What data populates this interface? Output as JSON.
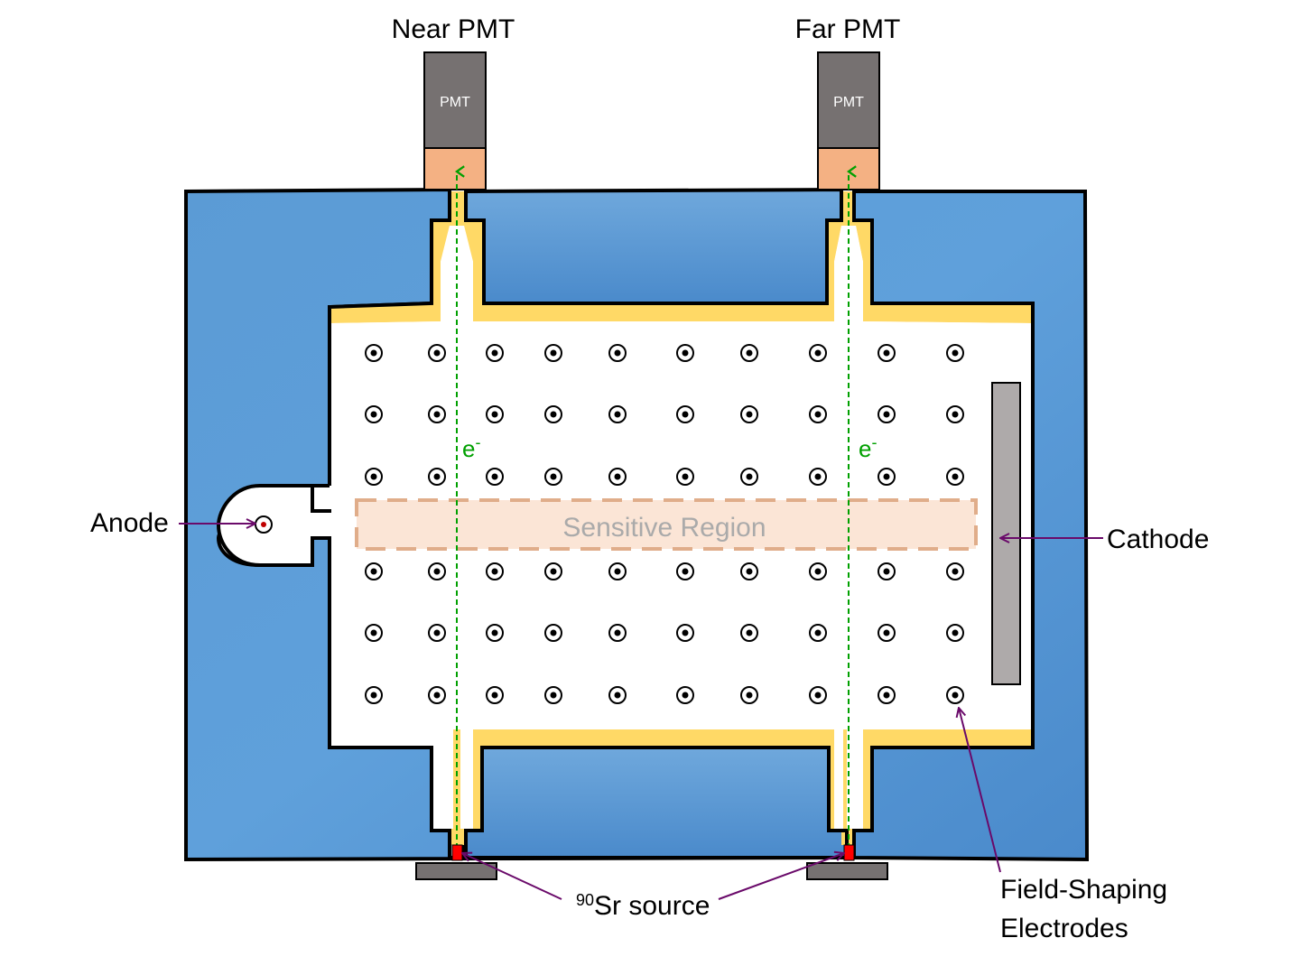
{
  "labels": {
    "near_pmt": "Near PMT",
    "far_pmt": "Far PMT",
    "pmt_box": "PMT",
    "anode": "Anode",
    "cathode": "Cathode",
    "sensitive_region": "Sensitive Region",
    "electron_base": "e",
    "electron_sup": "-",
    "source_sup": "90",
    "source_rest": "Sr source",
    "field_shaping_line1": "Field-Shaping",
    "field_shaping_line2": "Electrodes"
  },
  "electrodes": {
    "rows": 6,
    "cols": 10
  },
  "colors": {
    "vessel_blue": "#5b9bd5",
    "vessel_blue_light": "#6fa8dc",
    "vessel_blue_dark": "#4a8acb",
    "gas_yellow": "#ffd966",
    "pmt_gray": "#767171",
    "window_orange": "#f4b183",
    "cathode_gray": "#aeaaaa",
    "sensitive_fill": "#fbe5d6",
    "sensitive_border": "#e0ad8a",
    "electron_green": "#00a000",
    "source_red": "#ff0000",
    "source_holder": "#767171",
    "arrow_purple": "#6a0a6a"
  }
}
